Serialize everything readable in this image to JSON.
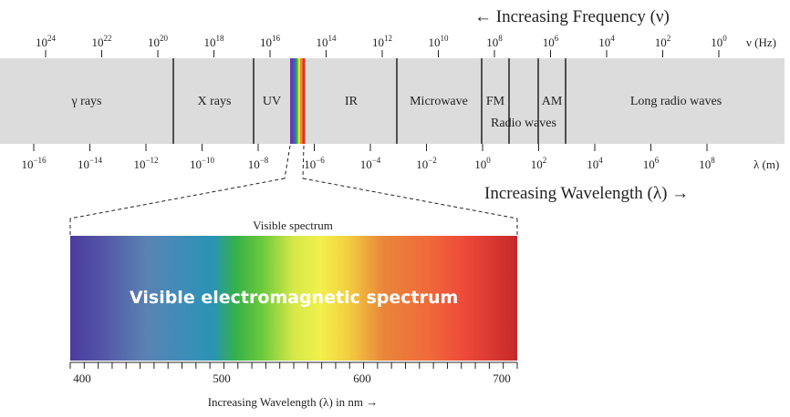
{
  "top_axis": {
    "arrow_title": "← Increasing Frequency (ν)",
    "unit": "ν (Hz)",
    "ticks": [
      {
        "base": "10",
        "exp": "24"
      },
      {
        "base": "10",
        "exp": "22"
      },
      {
        "base": "10",
        "exp": "20"
      },
      {
        "base": "10",
        "exp": "18"
      },
      {
        "base": "10",
        "exp": "16"
      },
      {
        "base": "10",
        "exp": "14"
      },
      {
        "base": "10",
        "exp": "12"
      },
      {
        "base": "10",
        "exp": "10"
      },
      {
        "base": "10",
        "exp": "8"
      },
      {
        "base": "10",
        "exp": "6"
      },
      {
        "base": "10",
        "exp": "4"
      },
      {
        "base": "10",
        "exp": "2"
      },
      {
        "base": "10",
        "exp": "0"
      }
    ]
  },
  "bottom_axis": {
    "arrow_title": "Increasing Wavelength (λ) →",
    "unit": "λ (m)",
    "ticks": [
      {
        "base": "10",
        "exp": "−16"
      },
      {
        "base": "10",
        "exp": "−14"
      },
      {
        "base": "10",
        "exp": "−12"
      },
      {
        "base": "10",
        "exp": "−10"
      },
      {
        "base": "10",
        "exp": "−8"
      },
      {
        "base": "10",
        "exp": "−6"
      },
      {
        "base": "10",
        "exp": "−4"
      },
      {
        "base": "10",
        "exp": "−2"
      },
      {
        "base": "10",
        "exp": "0"
      },
      {
        "base": "10",
        "exp": "2"
      },
      {
        "base": "10",
        "exp": "4"
      },
      {
        "base": "10",
        "exp": "6"
      },
      {
        "base": "10",
        "exp": "8"
      }
    ]
  },
  "bands": {
    "gamma": "γ rays",
    "xray": "X rays",
    "uv": "UV",
    "ir": "IR",
    "microwave": "Microwave",
    "fm": "FM",
    "am": "AM",
    "radio": "Radio waves",
    "long_radio": "Long radio waves"
  },
  "visible": {
    "title": "Visible spectrum",
    "overlay_text": "Visible electromagnetic spectrum",
    "axis_ticks": [
      "400",
      "500",
      "600",
      "700"
    ],
    "axis_label": "Increasing Wavelength (λ) in nm →"
  },
  "colors": {
    "band_background": "#dcdcdc",
    "line": "#222222",
    "overlay_text": "#ffffff"
  }
}
